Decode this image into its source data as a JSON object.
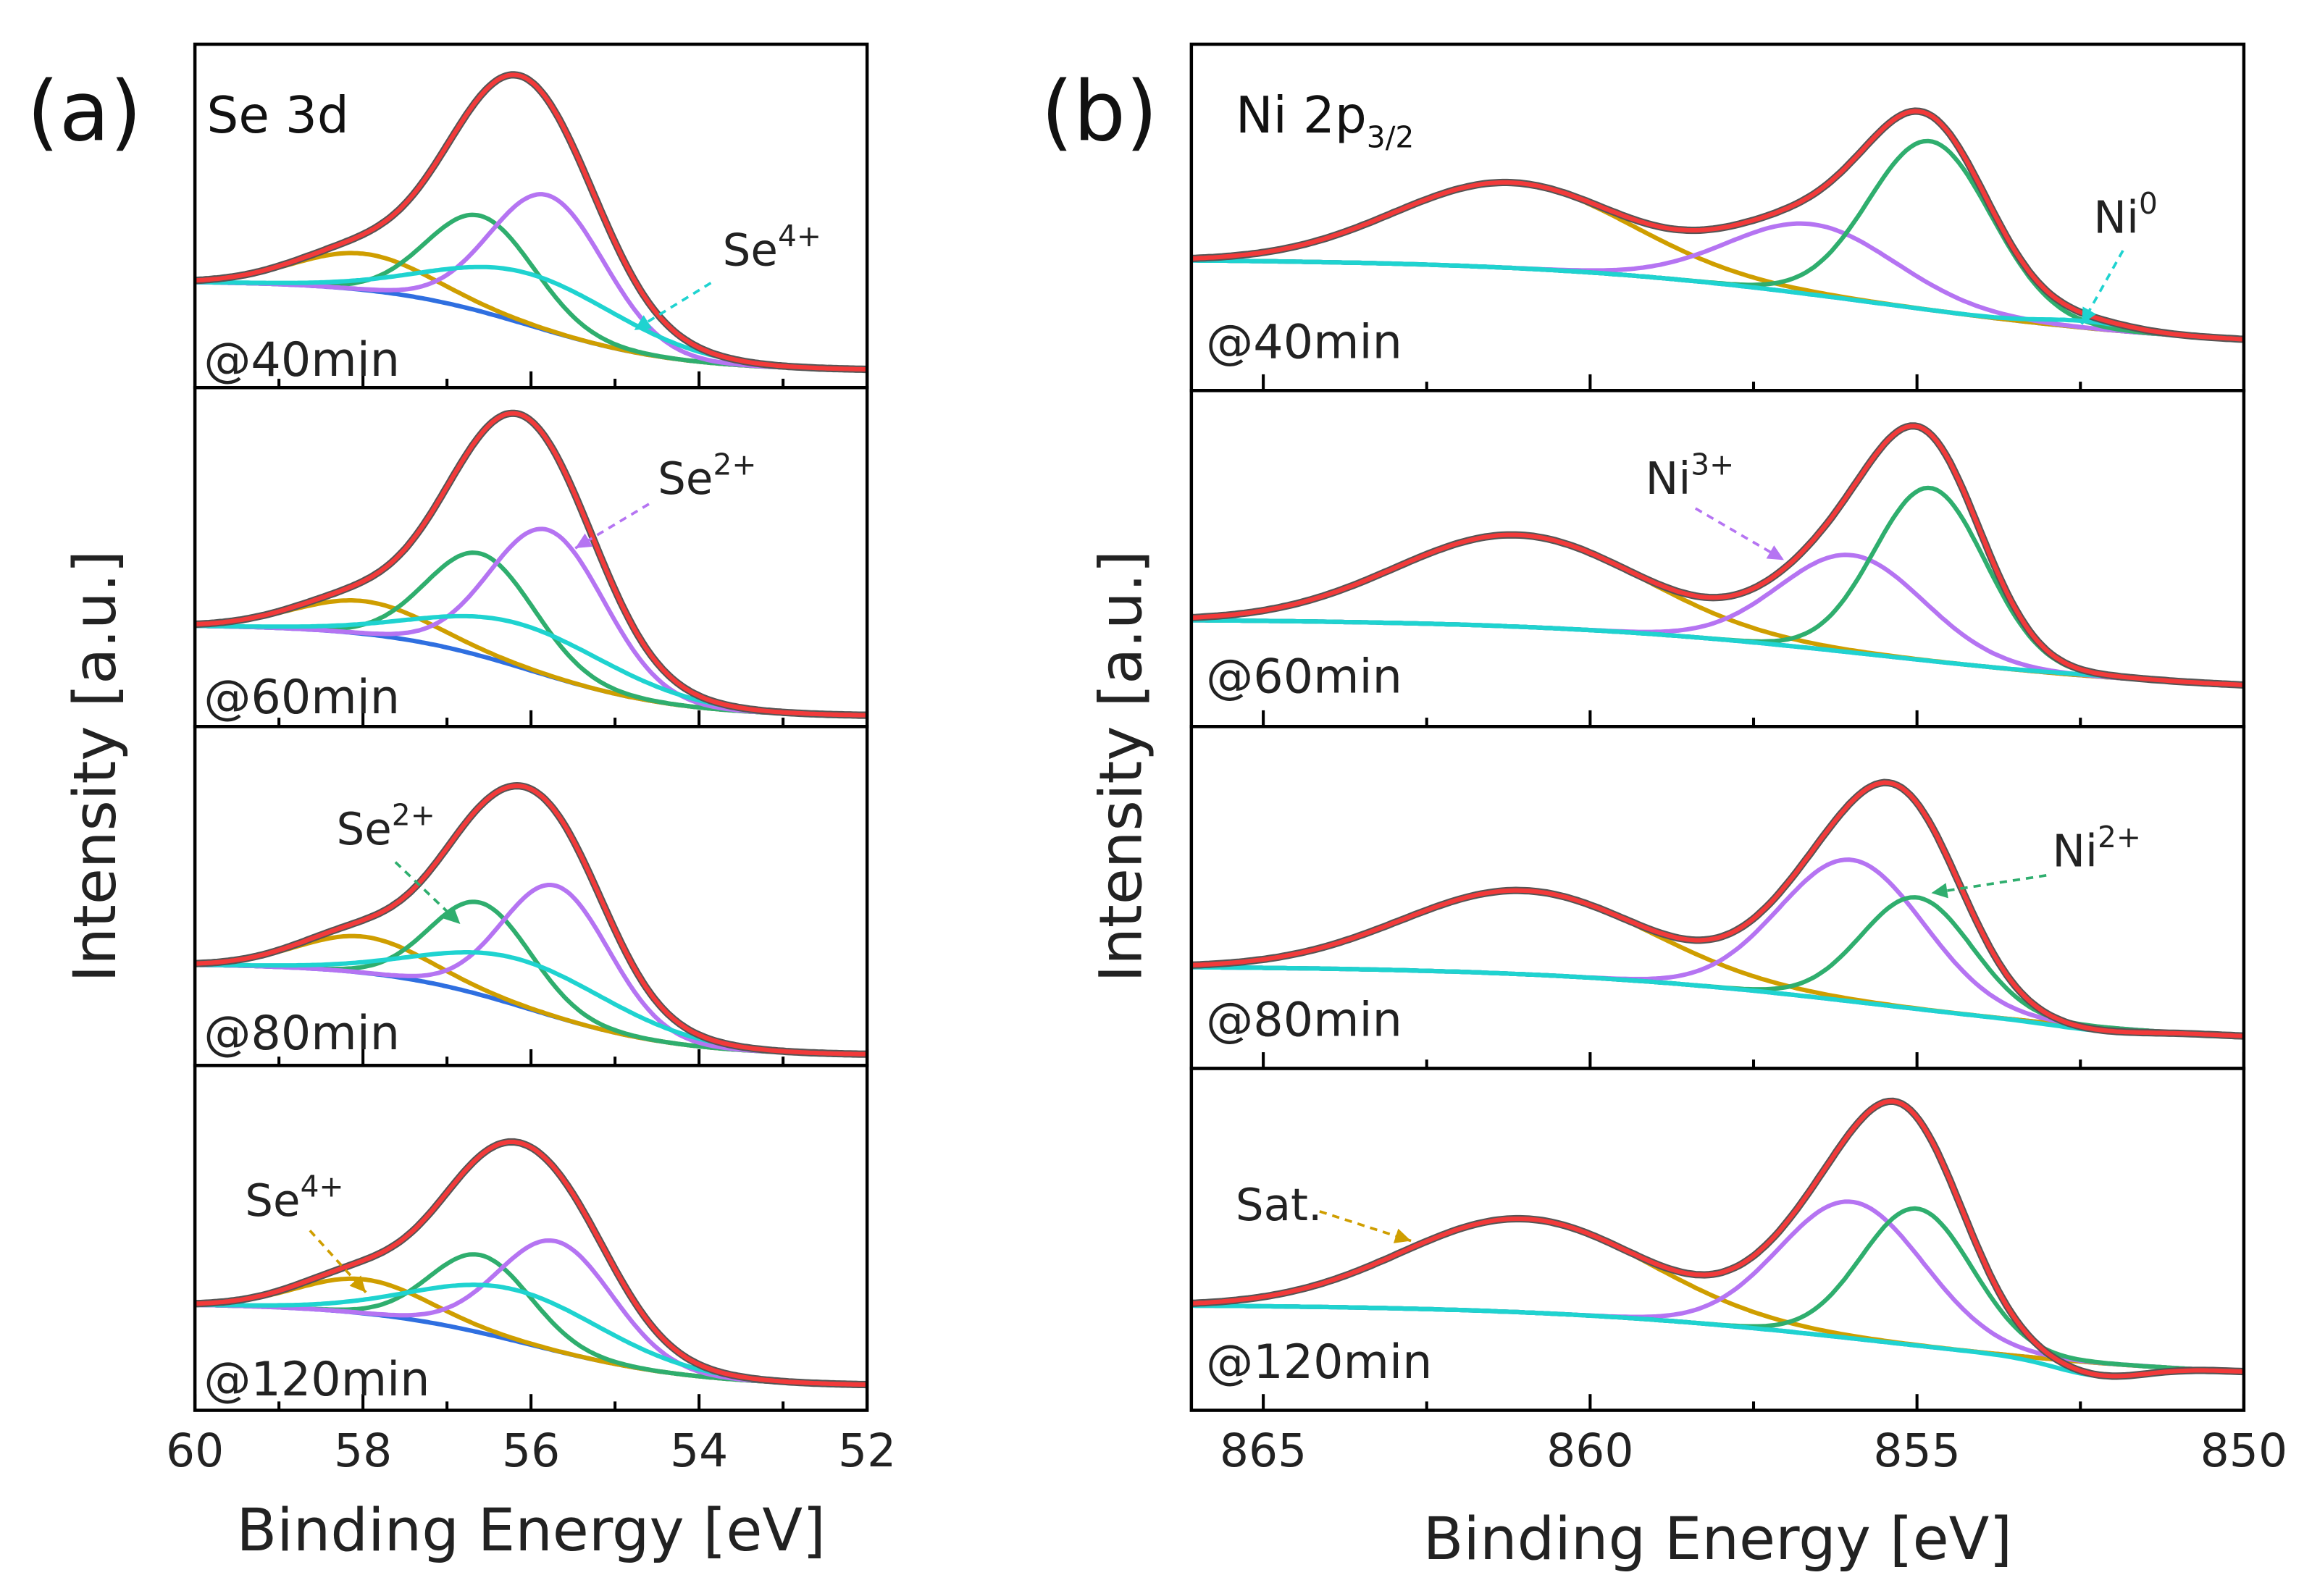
{
  "colors": {
    "raw": "#555555",
    "envelope": "#f23a3a",
    "background": "#2f6fe0",
    "cyan": "#1fd3d0",
    "purple": "#b574f2",
    "green": "#2fae6e",
    "gold": "#cf9e00"
  },
  "chart_data": [
    {
      "type": "line",
      "panel_letter": "(a)",
      "title": "Se 3d",
      "xlabel": "Binding Energy [eV]",
      "ylabel": "Intensity [a.u.]",
      "xlim": [
        60,
        52
      ],
      "x_reversed": true,
      "xticks": [
        60,
        58,
        56,
        54,
        52
      ],
      "minor_xticks": [
        59,
        57,
        55,
        53
      ],
      "grid": false,
      "legend": "none",
      "yticks_shown": false,
      "stacked_panels": [
        {
          "label": "@40min",
          "background": {
            "high": 0.31,
            "low": 0.05,
            "step_center": 56.0,
            "step_width": 0.9
          },
          "components": [
            {
              "color": "gold",
              "center": 58.0,
              "peak_intensity": 0.39,
              "fwhm": 1.9
            },
            {
              "color": "green",
              "center": 56.6,
              "peak_intensity": 0.5,
              "fwhm": 1.5
            },
            {
              "color": "purple",
              "center": 55.8,
              "peak_intensity": 0.56,
              "fwhm": 1.6
            },
            {
              "color": "cyan",
              "center": 56.0,
              "peak_intensity": 0.33,
              "fwhm": 2.6
            }
          ]
        },
        {
          "label": "@60min",
          "background": {
            "high": 0.3,
            "low": 0.03,
            "step_center": 56.0,
            "step_width": 0.9
          },
          "components": [
            {
              "color": "gold",
              "center": 58.0,
              "peak_intensity": 0.37,
              "fwhm": 1.9
            },
            {
              "color": "green",
              "center": 56.6,
              "peak_intensity": 0.51,
              "fwhm": 1.5
            },
            {
              "color": "purple",
              "center": 55.8,
              "peak_intensity": 0.58,
              "fwhm": 1.6
            },
            {
              "color": "cyan",
              "center": 56.1,
              "peak_intensity": 0.3,
              "fwhm": 2.6
            }
          ]
        },
        {
          "label": "@80min",
          "background": {
            "high": 0.3,
            "low": 0.03,
            "step_center": 56.0,
            "step_width": 0.9
          },
          "components": [
            {
              "color": "gold",
              "center": 58.0,
              "peak_intensity": 0.38,
              "fwhm": 1.8
            },
            {
              "color": "green",
              "center": 56.6,
              "peak_intensity": 0.48,
              "fwhm": 1.4
            },
            {
              "color": "purple",
              "center": 55.7,
              "peak_intensity": 0.53,
              "fwhm": 1.5
            },
            {
              "color": "cyan",
              "center": 56.1,
              "peak_intensity": 0.31,
              "fwhm": 2.6
            }
          ]
        },
        {
          "label": "@120min",
          "background": {
            "high": 0.31,
            "low": 0.07,
            "step_center": 56.0,
            "step_width": 1.0
          },
          "components": [
            {
              "color": "gold",
              "center": 58.0,
              "peak_intensity": 0.38,
              "fwhm": 1.8
            },
            {
              "color": "green",
              "center": 56.6,
              "peak_intensity": 0.45,
              "fwhm": 1.4
            },
            {
              "color": "purple",
              "center": 55.7,
              "peak_intensity": 0.49,
              "fwhm": 1.6
            },
            {
              "color": "cyan",
              "center": 56.2,
              "peak_intensity": 0.35,
              "fwhm": 2.6
            }
          ]
        }
      ],
      "annotations": [
        {
          "panel": 0,
          "text": "Se",
          "sup": "4+",
          "color": "cyan"
        },
        {
          "panel": 1,
          "text": "Se",
          "sup": "2+",
          "color": "purple"
        },
        {
          "panel": 2,
          "text": "Se",
          "sup": "2+",
          "color": "green"
        },
        {
          "panel": 3,
          "text": "Se",
          "sup": "4+",
          "color": "gold"
        }
      ]
    },
    {
      "type": "line",
      "panel_letter": "(b)",
      "title": "Ni 2p",
      "title_sub": "3/2",
      "xlabel": "Binding Energy [eV]",
      "ylabel": "Intensity [a.u.]",
      "xlim": [
        866.1,
        850
      ],
      "x_reversed": true,
      "xticks": [
        865,
        860,
        855,
        850
      ],
      "minor_xticks": [
        862.5,
        857.5,
        852.5
      ],
      "grid": false,
      "legend": "none",
      "yticks_shown": false,
      "stacked_panels": [
        {
          "label": "@40min",
          "background": {
            "high": 0.38,
            "low": 0.12,
            "step_center": 855.5,
            "step_width": 2.6
          },
          "components": [
            {
              "color": "gold",
              "center": 861.2,
              "peak_intensity": 0.6,
              "fwhm": 4.2
            },
            {
              "color": "purple",
              "center": 856.6,
              "peak_intensity": 0.48,
              "fwhm": 3.0
            },
            {
              "color": "green",
              "center": 854.8,
              "peak_intensity": 0.72,
              "fwhm": 2.2
            },
            {
              "color": "cyan",
              "center": 852.4,
              "peak_intensity": 0.2,
              "fwhm": 1.6
            }
          ]
        },
        {
          "label": "@60min",
          "background": {
            "high": 0.32,
            "low": 0.1,
            "step_center": 855.5,
            "step_width": 2.6
          },
          "components": [
            {
              "color": "gold",
              "center": 861.1,
              "peak_intensity": 0.57,
              "fwhm": 4.4
            },
            {
              "color": "purple",
              "center": 856.0,
              "peak_intensity": 0.51,
              "fwhm": 2.6
            },
            {
              "color": "green",
              "center": 854.8,
              "peak_intensity": 0.71,
              "fwhm": 2.0
            },
            {
              "color": "cyan",
              "center": 852.1,
              "peak_intensity": 0.15,
              "fwhm": 1.8
            }
          ]
        },
        {
          "label": "@80min",
          "background": {
            "high": 0.3,
            "low": 0.07,
            "step_center": 855.5,
            "step_width": 2.6
          },
          "components": [
            {
              "color": "gold",
              "center": 861.0,
              "peak_intensity": 0.52,
              "fwhm": 4.4
            },
            {
              "color": "purple",
              "center": 856.0,
              "peak_intensity": 0.61,
              "fwhm": 2.6
            },
            {
              "color": "green",
              "center": 855.0,
              "peak_intensity": 0.5,
              "fwhm": 2.0
            },
            {
              "color": "cyan",
              "center": 852.2,
              "peak_intensity": 0.11,
              "fwhm": 1.6
            }
          ]
        },
        {
          "label": "@120min",
          "background": {
            "high": 0.31,
            "low": 0.09,
            "step_center": 855.5,
            "step_width": 2.6
          },
          "components": [
            {
              "color": "gold",
              "center": 861.0,
              "peak_intensity": 0.56,
              "fwhm": 4.4
            },
            {
              "color": "purple",
              "center": 856.0,
              "peak_intensity": 0.61,
              "fwhm": 2.6
            },
            {
              "color": "green",
              "center": 855.0,
              "peak_intensity": 0.59,
              "fwhm": 2.0
            },
            {
              "color": "cyan",
              "center": 852.2,
              "peak_intensity": 0.1,
              "fwhm": 1.6
            }
          ]
        }
      ],
      "annotations": [
        {
          "panel": 0,
          "text": "Ni",
          "sup": "0",
          "color": "cyan"
        },
        {
          "panel": 1,
          "text": "Ni",
          "sup": "3+",
          "color": "purple"
        },
        {
          "panel": 2,
          "text": "Ni",
          "sup": "2+",
          "color": "green"
        },
        {
          "panel": 3,
          "text": "Sat.",
          "sup": "",
          "color": "gold"
        }
      ]
    }
  ]
}
